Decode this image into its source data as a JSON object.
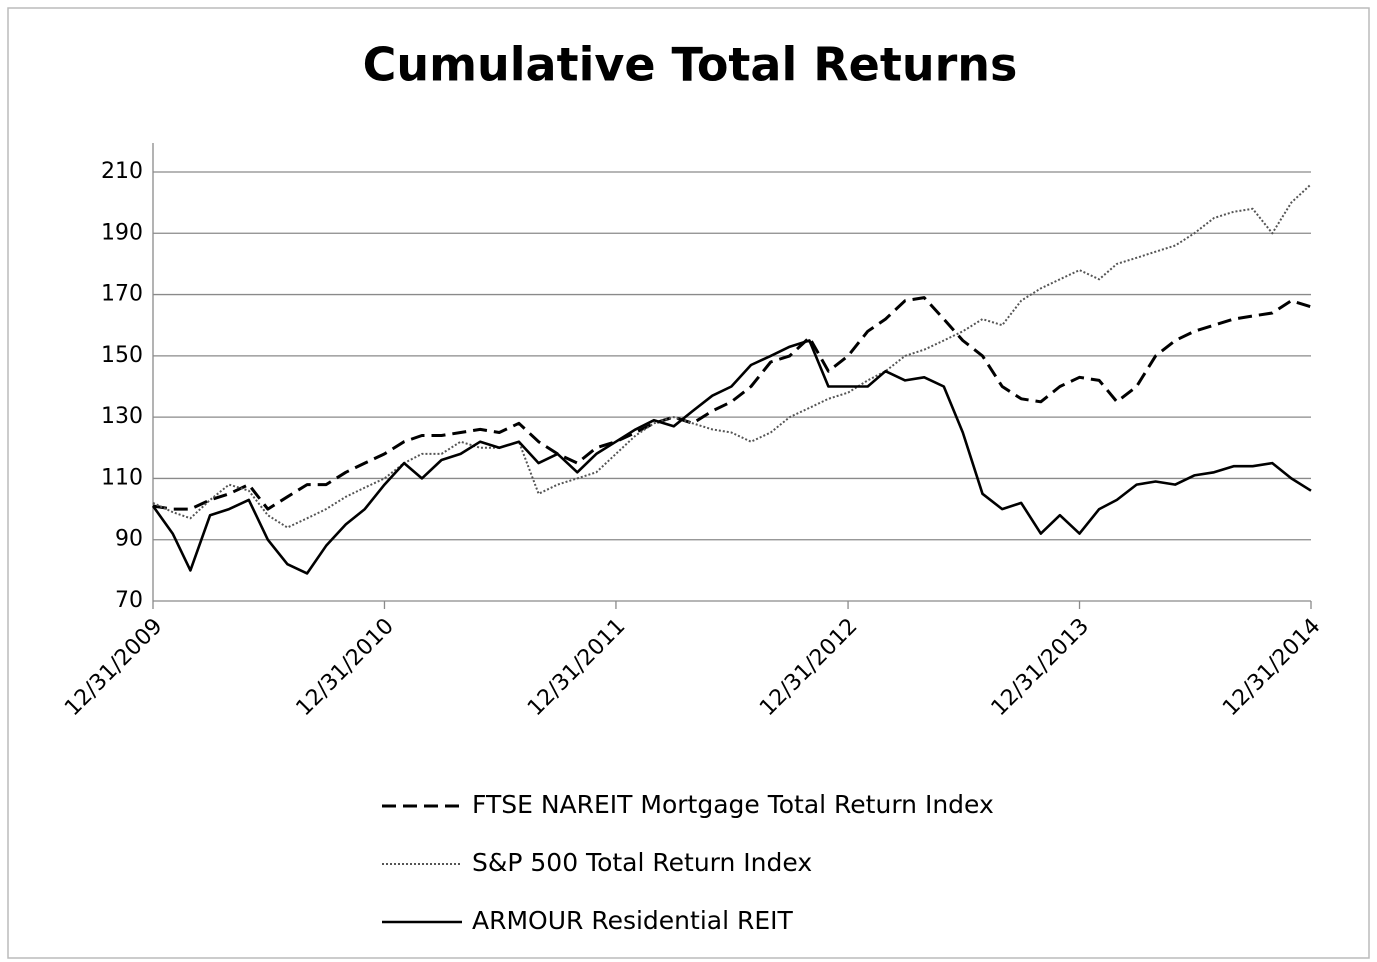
{
  "chart_data": {
    "type": "line",
    "title": "Cumulative Total Returns",
    "x": [
      "12/31/2009",
      "1/31/2010",
      "2/28/2010",
      "3/31/2010",
      "4/30/2010",
      "5/31/2010",
      "6/30/2010",
      "7/31/2010",
      "8/31/2010",
      "9/30/2010",
      "10/31/2010",
      "11/30/2010",
      "12/31/2010",
      "1/31/2011",
      "2/28/2011",
      "3/31/2011",
      "4/30/2011",
      "5/31/2011",
      "6/30/2011",
      "7/31/2011",
      "8/31/2011",
      "9/30/2011",
      "10/31/2011",
      "11/30/2011",
      "12/31/2011",
      "1/31/2012",
      "2/29/2012",
      "3/31/2012",
      "4/30/2012",
      "5/31/2012",
      "6/30/2012",
      "7/31/2012",
      "8/31/2012",
      "9/30/2012",
      "10/31/2012",
      "11/30/2012",
      "12/31/2012",
      "1/31/2013",
      "2/28/2013",
      "3/31/2013",
      "4/30/2013",
      "5/31/2013",
      "6/30/2013",
      "7/31/2013",
      "8/31/2013",
      "9/30/2013",
      "10/31/2013",
      "11/30/2013",
      "12/31/2013",
      "1/31/2014",
      "2/28/2014",
      "3/31/2014",
      "4/30/2014",
      "5/31/2014",
      "6/30/2014",
      "7/31/2014",
      "8/31/2014",
      "9/30/2014",
      "10/31/2014",
      "11/30/2014",
      "12/31/2014"
    ],
    "series": [
      {
        "name": "FTSE NAREIT Mortgage Total Return Index",
        "color": "#000000",
        "dash": "dashed",
        "values": [
          101,
          100,
          100,
          103,
          105,
          108,
          100,
          104,
          108,
          108,
          112,
          115,
          118,
          122,
          124,
          124,
          125,
          126,
          125,
          128,
          122,
          118,
          115,
          120,
          122,
          125,
          128,
          130,
          128,
          132,
          135,
          140,
          148,
          150,
          156,
          145,
          150,
          158,
          162,
          168,
          169,
          162,
          155,
          150,
          140,
          136,
          135,
          140,
          143,
          142,
          135,
          140,
          150,
          155,
          158,
          160,
          162,
          163,
          164,
          168,
          166
        ]
      },
      {
        "name": "S&P 500 Total Return Index",
        "color": "#555555",
        "dash": "dotted",
        "values": [
          102,
          99,
          97,
          103,
          108,
          106,
          98,
          94,
          97,
          100,
          104,
          107,
          110,
          115,
          118,
          118,
          122,
          120,
          120,
          122,
          105,
          108,
          110,
          112,
          118,
          124,
          128,
          130,
          128,
          126,
          125,
          122,
          125,
          130,
          133,
          136,
          138,
          142,
          145,
          150,
          152,
          155,
          158,
          162,
          160,
          168,
          172,
          175,
          178,
          175,
          180,
          182,
          184,
          186,
          190,
          195,
          197,
          198,
          190,
          200,
          206
        ]
      },
      {
        "name": "ARMOUR Residential REIT",
        "color": "#000000",
        "dash": "solid",
        "values": [
          101,
          92,
          80,
          98,
          100,
          103,
          90,
          82,
          79,
          88,
          95,
          100,
          108,
          115,
          110,
          116,
          118,
          122,
          120,
          122,
          115,
          118,
          112,
          118,
          122,
          126,
          129,
          127,
          132,
          137,
          140,
          147,
          150,
          153,
          155,
          140,
          140,
          140,
          145,
          142,
          143,
          140,
          125,
          105,
          100,
          102,
          92,
          98,
          92,
          100,
          103,
          108,
          109,
          108,
          111,
          112,
          114,
          114,
          115,
          110,
          106
        ]
      }
    ],
    "xlim": [
      "12/31/2009",
      "12/31/2014"
    ],
    "xticks": [
      "12/31/2009",
      "12/31/2010",
      "12/31/2011",
      "12/31/2012",
      "12/31/2013",
      "12/31/2014"
    ],
    "ylim": [
      70,
      210
    ],
    "yticks": [
      70,
      90,
      110,
      130,
      150,
      170,
      190,
      210
    ],
    "grid": true,
    "legend": "bottom"
  }
}
